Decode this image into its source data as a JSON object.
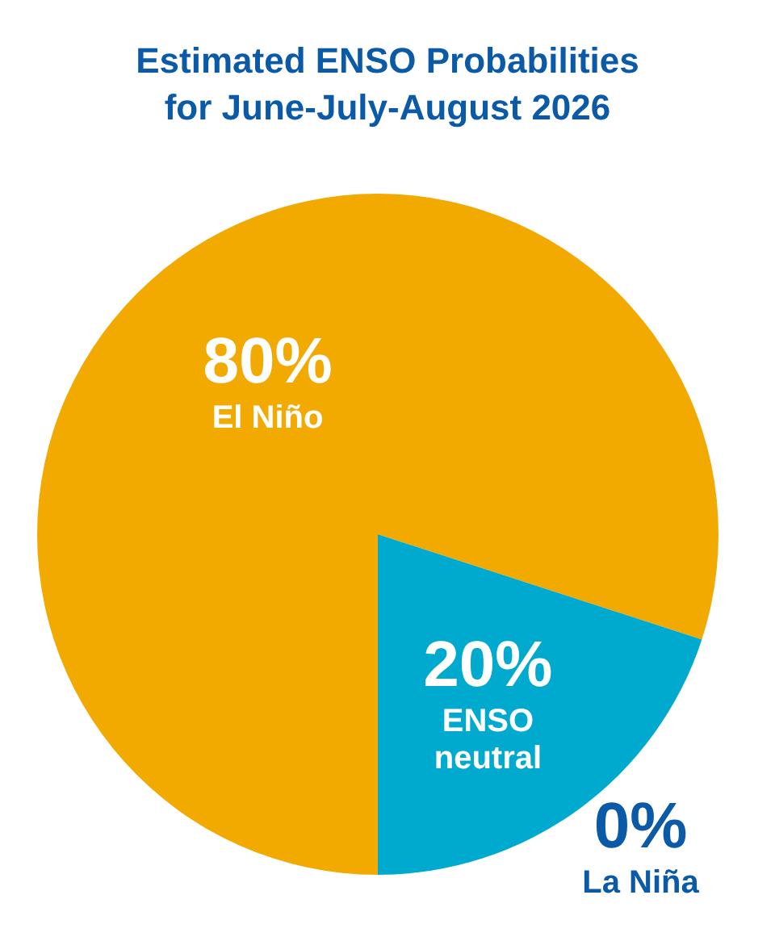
{
  "chart_data": {
    "type": "pie",
    "title": "Estimated ENSO Probabilities\nfor June-July-August 2026",
    "categories": [
      "El Niño",
      "ENSO neutral",
      "La Niña"
    ],
    "values": [
      80,
      20,
      0
    ],
    "colors": [
      "#f2a900",
      "#00a9ce",
      "#0a5aa8"
    ],
    "value_labels": [
      "80%",
      "20%",
      "0%"
    ]
  }
}
